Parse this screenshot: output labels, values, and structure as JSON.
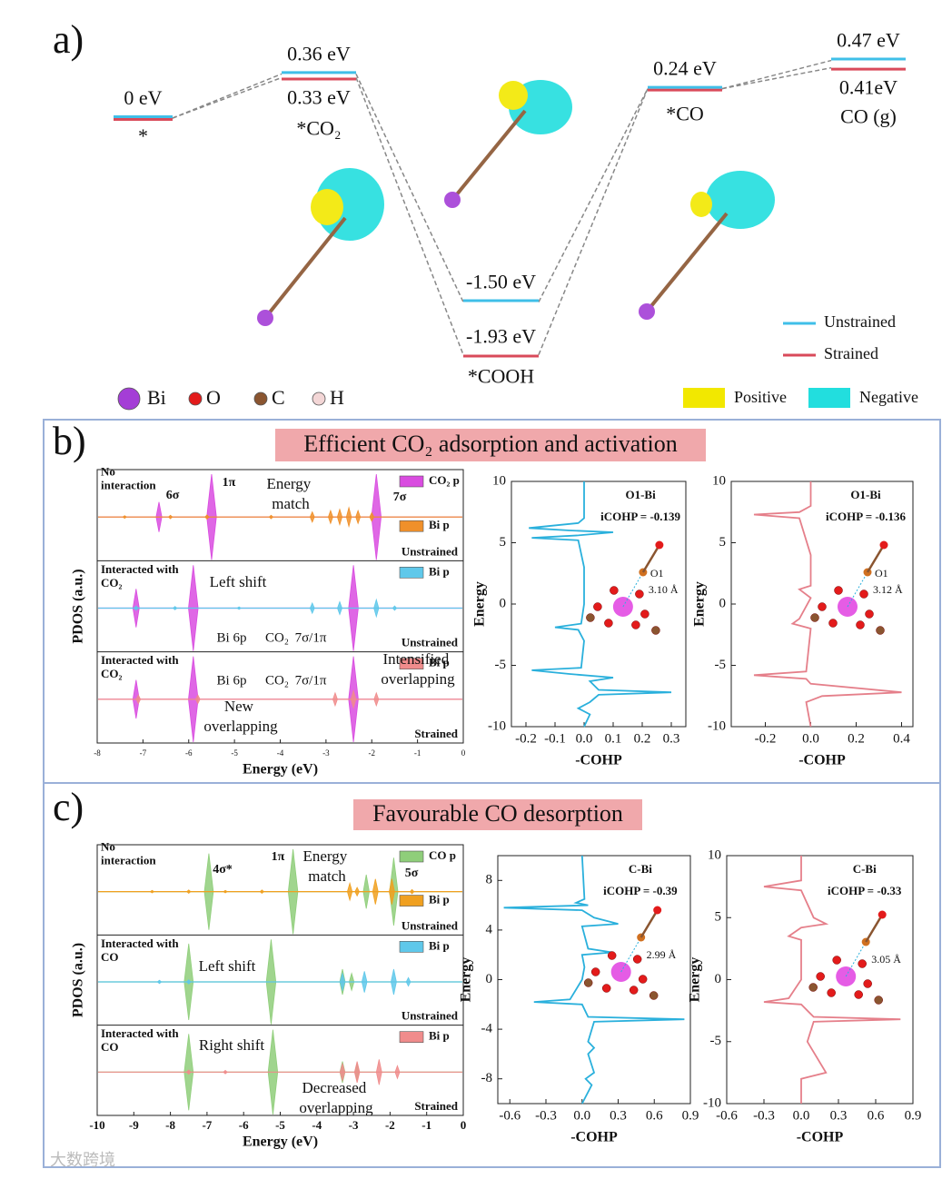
{
  "panel_a": {
    "label": "a)",
    "steps": [
      {
        "state": "*",
        "unstrained": 0,
        "strained": 0,
        "unstrained_label": "0 eV"
      },
      {
        "state": "*CO₂",
        "unstrained": 0.36,
        "strained": 0.33,
        "unstrained_label": "0.36 eV",
        "strained_label": "0.33 eV"
      },
      {
        "state": "*COOH",
        "unstrained": -1.5,
        "strained": -1.93,
        "unstrained_label": "-1.50 eV",
        "strained_label": "-1.93 eV"
      },
      {
        "state": "*CO",
        "unstrained": 0.24,
        "strained": 0.24,
        "unstrained_label": "0.24 eV"
      },
      {
        "state": "CO (g)",
        "unstrained": 0.47,
        "strained": 0.41,
        "unstrained_label": "0.47 eV",
        "strained_label": "0.41eV"
      }
    ],
    "legend": [
      {
        "name": "Unstrained",
        "color": "#3fbfe8"
      },
      {
        "name": "Strained",
        "color": "#d94a5a"
      }
    ],
    "atoms": [
      {
        "name": "Bi",
        "color": "#a43ed6"
      },
      {
        "name": "O",
        "color": "#e31b1b"
      },
      {
        "name": "C",
        "color": "#8a5530"
      },
      {
        "name": "H",
        "color": "#f3d6d6"
      }
    ],
    "charge": [
      {
        "name": "Positive",
        "color": "#f2e800"
      },
      {
        "name": "Negative",
        "color": "#22dede"
      }
    ]
  },
  "panel_b": {
    "label": "b)",
    "title": "Efficient CO₂ adsorption and activation",
    "pdos": {
      "xlabel": "Energy (eV)",
      "ylabel": "PDOS (a.u.)",
      "xlim": [
        -8,
        0
      ],
      "xticks": [
        -8,
        -7,
        -6,
        -5,
        -4,
        -3,
        -2,
        -1,
        0
      ],
      "subpanels": [
        {
          "label": "No interaction",
          "state": "Unstrained",
          "series": [
            {
              "name": "CO₂ p",
              "color": "#d94ce0",
              "energies": [
                -6.65,
                -5.5,
                -1.9
              ],
              "heights": [
                0.35,
                1,
                1
              ]
            },
            {
              "name": "Bi p",
              "color": "#f0902a",
              "energies": [
                -7.4,
                -6.4,
                -5.6,
                -4.2,
                -3.3,
                -2.9,
                -2.7,
                -2.5,
                -2.3,
                -2.0
              ],
              "heights": [
                0.03,
                0.04,
                0.05,
                0.04,
                0.12,
                0.15,
                0.18,
                0.22,
                0.15,
                0.1
              ]
            }
          ],
          "notes": [
            "6σ",
            "1π",
            "7σ",
            "Energy match"
          ]
        },
        {
          "label": "Interacted with CO₂",
          "state": "Unstrained",
          "series": [
            {
              "color": "#d94ce0",
              "energies": [
                -7.15,
                -5.9,
                -2.4
              ],
              "heights": [
                0.45,
                1,
                1
              ]
            },
            {
              "name": "Bi p",
              "color": "#5fc8ea",
              "energies": [
                -7.15,
                -6.3,
                -4.9,
                -3.3,
                -2.7,
                -1.9,
                -1.5
              ],
              "heights": [
                0.05,
                0.04,
                0.03,
                0.12,
                0.15,
                0.2,
                0.05
              ]
            }
          ],
          "notes": [
            "Left shift",
            "Bi 6p",
            "CO₂",
            "7σ/1π"
          ]
        },
        {
          "label": "Interacted with CO₂",
          "state": "Strained",
          "series": [
            {
              "color": "#d94ce0",
              "energies": [
                -7.15,
                -5.9,
                -2.4
              ],
              "heights": [
                0.45,
                1,
                1
              ]
            },
            {
              "name": "Bi p",
              "color": "#f08c8c",
              "energies": [
                -7.1,
                -5.8,
                -2.8,
                -2.4,
                -1.9
              ],
              "heights": [
                0.1,
                0.1,
                0.15,
                0.2,
                0.15
              ]
            }
          ],
          "notes": [
            "Bi 6p",
            "CO₂",
            "7σ/1π",
            "New overlapping",
            "Intensified overlapping"
          ]
        }
      ]
    },
    "cohp": [
      {
        "xlabel": "-COHP",
        "ylabel": "Energy",
        "bond": "O1-Bi",
        "icohp": "iCOHP = -0.139",
        "atom": "O1",
        "distance": "3.10 Å",
        "color": "#2ab0dc",
        "xlim": [
          -0.25,
          0.35
        ],
        "xticks": [
          -0.2,
          -0.1,
          {
            "value": 0,
            "label": "0.0"
          },
          0.1,
          0.2,
          0.3
        ],
        "ylim": [
          -10,
          10
        ],
        "yticks": [
          -10,
          -5,
          0,
          5,
          10
        ],
        "energy": [
          10,
          7,
          6.6,
          6.2,
          6.0,
          5.85,
          5.6,
          5.4,
          5.2,
          3,
          0,
          -1.6,
          -1.9,
          -2.1,
          -3,
          -5.2,
          -5.4,
          -5.7,
          -6,
          -6.3,
          -7,
          -7.2,
          -7.4,
          -8,
          -8.5,
          -9,
          -10
        ],
        "cohp": [
          0,
          0,
          -0.02,
          -0.19,
          -0.05,
          0.1,
          -0.02,
          -0.18,
          -0.02,
          0,
          0,
          -0.01,
          -0.1,
          -0.02,
          0,
          -0.01,
          -0.18,
          -0.05,
          0.1,
          0.02,
          0.05,
          0.3,
          0.05,
          0.02,
          -0.02,
          0.02,
          0
        ]
      },
      {
        "xlabel": "-COHP",
        "ylabel": "Energy",
        "bond": "O1-Bi",
        "icohp": "iCOHP = -0.136",
        "atom": "O1",
        "distance": "3.12 Å",
        "color": "#e57f8a",
        "xlim": [
          -0.35,
          0.45
        ],
        "xticks": [
          -0.2,
          {
            "value": 0,
            "label": "0.0"
          },
          0.2,
          0.4
        ],
        "ylim": [
          -10,
          10
        ],
        "yticks": [
          -10,
          -5,
          0,
          5,
          10
        ],
        "energy": [
          10,
          8,
          7.5,
          7.3,
          7.0,
          4,
          1.5,
          1.2,
          0.5,
          -1.2,
          -1.6,
          -2,
          -5.5,
          -5.8,
          -6.1,
          -6.5,
          -7.2,
          -7.5,
          -8,
          -10
        ],
        "cohp": [
          0,
          0,
          -0.05,
          -0.25,
          -0.05,
          0,
          0,
          -0.05,
          0,
          -0.05,
          -0.08,
          0,
          -0.02,
          -0.25,
          -0.02,
          0,
          0.4,
          0.05,
          -0.02,
          0
        ]
      }
    ]
  },
  "panel_c": {
    "label": "c)",
    "title": "Favourable CO desorption",
    "pdos": {
      "xlabel": "Energy (eV)",
      "ylabel": "PDOS (a.u.)",
      "xlim": [
        -10,
        0
      ],
      "xticks": [
        -10,
        -9,
        -8,
        -7,
        -6,
        -5,
        -4,
        -3,
        -2,
        -1,
        0
      ],
      "subpanels": [
        {
          "label": "No interaction",
          "state": "Unstrained",
          "series": [
            {
              "name": "CO p",
              "color": "#8fce7a",
              "energies": [
                -6.95,
                -4.65,
                -2.65,
                -1.9
              ],
              "heights": [
                0.9,
                1,
                0.4,
                0.8
              ]
            },
            {
              "name": "Bi p",
              "color": "#f0a020",
              "energies": [
                -8.5,
                -7.5,
                -6.5,
                -5.5,
                -3.1,
                -2.9,
                -2.4,
                -1.95,
                -1.4
              ],
              "heights": [
                0.03,
                0.04,
                0.03,
                0.04,
                0.2,
                0.1,
                0.3,
                0.3,
                0.05
              ]
            }
          ],
          "notes": [
            "4σ*",
            "1π",
            "Energy match",
            "5σ"
          ]
        },
        {
          "label": "Interacted with CO",
          "state": "Unstrained",
          "series": [
            {
              "color": "#8fce7a",
              "energies": [
                -7.5,
                -5.25,
                -3.3,
                -3.05
              ],
              "heights": [
                0.9,
                1,
                0.3,
                0.2
              ]
            },
            {
              "name": "Bi p",
              "color": "#5fc8ea",
              "energies": [
                -8.3,
                -7.5,
                -3.3,
                -2.7,
                -1.9,
                -1.5
              ],
              "heights": [
                0.04,
                0.05,
                0.2,
                0.25,
                0.3,
                0.1
              ]
            }
          ],
          "notes": [
            "Left shift"
          ]
        },
        {
          "label": "Interacted with CO",
          "state": "Strained",
          "series": [
            {
              "color": "#8fce7a",
              "energies": [
                -7.5,
                -5.2,
                -3.3,
                -2.9
              ],
              "heights": [
                0.9,
                1,
                0.25,
                0.2
              ]
            },
            {
              "name": "Bi p",
              "color": "#f08c8c",
              "energies": [
                -7.5,
                -6.5,
                -3.3,
                -2.9,
                -2.3,
                -1.8
              ],
              "heights": [
                0.05,
                0.04,
                0.2,
                0.25,
                0.3,
                0.15
              ]
            }
          ],
          "notes": [
            "Right shift",
            "Decreased overlapping"
          ]
        }
      ]
    },
    "cohp": [
      {
        "xlabel": "-COHP",
        "ylabel": "Energy",
        "bond": "C-Bi",
        "icohp": "iCOHP = -0.39",
        "distance": "2.99 Å",
        "color": "#2ab0dc",
        "xlim": [
          -0.7,
          0.9
        ],
        "xticks": [
          -0.6,
          -0.3,
          {
            "value": 0,
            "label": "0.0"
          },
          0.3,
          0.6,
          0.9
        ],
        "ylim": [
          -10,
          10
        ],
        "yticks": [
          -8,
          -4,
          0,
          4,
          8
        ],
        "energy": [
          10,
          6.5,
          6.2,
          6,
          5.8,
          5.6,
          5,
          4.5,
          4.3,
          2.5,
          2.2,
          2,
          1,
          0,
          -1.6,
          -1.8,
          -2,
          -3,
          -3.2,
          -3.4,
          -5,
          -5.5,
          -6,
          -7.5,
          -8,
          -8.5,
          -10
        ],
        "cohp": [
          0,
          0.02,
          -0.05,
          0.05,
          -0.65,
          0,
          0.1,
          0.3,
          0,
          0.05,
          0.25,
          0,
          0.02,
          0,
          -0.1,
          -0.4,
          0,
          0.05,
          0.85,
          0.1,
          0.05,
          0.1,
          0.05,
          0.1,
          0.03,
          0.08,
          0
        ]
      },
      {
        "xlabel": "-COHP",
        "ylabel": "Energy",
        "bond": "C-Bi",
        "icohp": "iCOHP = -0.33",
        "distance": "3.05 Å",
        "color": "#e57f8a",
        "xlim": [
          -0.6,
          0.9
        ],
        "xticks": [
          -0.6,
          -0.3,
          {
            "value": 0,
            "label": "0.0"
          },
          0.3,
          0.6,
          0.9
        ],
        "ylim": [
          -10,
          10
        ],
        "yticks": [
          -10,
          -5,
          0,
          5,
          10
        ],
        "energy": [
          10,
          8,
          7.5,
          7.2,
          5,
          4.5,
          4.2,
          3.5,
          3.2,
          0,
          -1.5,
          -1.8,
          -2,
          -3,
          -3.2,
          -3.4,
          -5,
          -7.5,
          -8,
          -10
        ],
        "cohp": [
          0,
          0,
          -0.3,
          0,
          0.1,
          0.2,
          0,
          -0.1,
          0,
          0,
          -0.1,
          -0.3,
          0,
          0.1,
          0.8,
          0.1,
          0.05,
          0.2,
          0,
          0
        ]
      }
    ]
  },
  "watermark": "大数跨境"
}
